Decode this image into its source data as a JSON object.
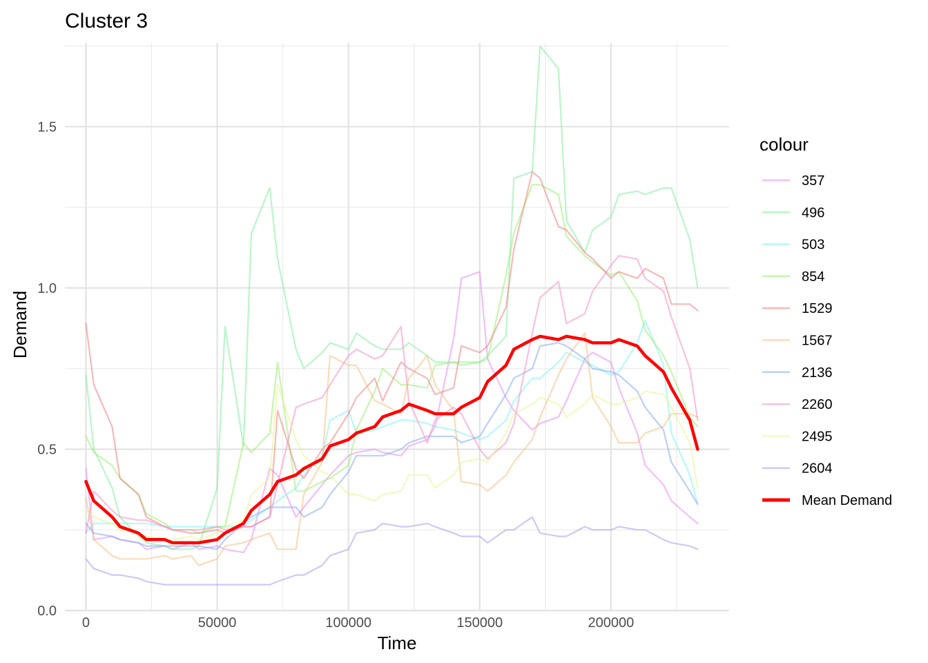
{
  "chart_data": {
    "type": "line",
    "title": "Cluster 3",
    "xlabel": "Time",
    "ylabel": "Demand",
    "xlim": [
      -8000,
      245000
    ],
    "ylim": [
      0,
      1.76
    ],
    "xticks": [
      0,
      50000,
      100000,
      150000,
      200000
    ],
    "xtick_labels": [
      "0",
      "50000",
      "100000",
      "150000",
      "200000"
    ],
    "yticks": [
      0.0,
      0.5,
      1.0,
      1.5
    ],
    "ytick_labels": [
      "0.0",
      "0.5",
      "1.0",
      "1.5"
    ],
    "grid": true,
    "legend": {
      "title": "colour",
      "position": "right"
    },
    "x": [
      0,
      3000,
      10000,
      13000,
      20000,
      23000,
      30000,
      33000,
      40000,
      43000,
      50000,
      53000,
      60000,
      63000,
      70000,
      73000,
      80000,
      83000,
      90000,
      93000,
      100000,
      103000,
      110000,
      113000,
      120000,
      123000,
      130000,
      133000,
      140000,
      143000,
      150000,
      153000,
      160000,
      163000,
      170000,
      173000,
      180000,
      183000,
      190000,
      193000,
      200000,
      203000,
      210000,
      213000,
      220000,
      223000,
      230000,
      233000
    ],
    "series": [
      {
        "name": "357",
        "color": "#E58AF5",
        "values": [
          0.44,
          0.22,
          0.23,
          0.22,
          0.21,
          0.19,
          0.2,
          0.19,
          0.21,
          0.19,
          0.2,
          0.19,
          0.18,
          0.22,
          0.44,
          0.42,
          0.29,
          0.32,
          0.39,
          0.42,
          0.48,
          0.49,
          0.5,
          0.49,
          0.48,
          0.51,
          0.53,
          0.57,
          0.84,
          1.03,
          1.05,
          0.78,
          0.66,
          0.62,
          0.56,
          0.58,
          0.6,
          0.65,
          0.78,
          0.8,
          0.77,
          0.69,
          0.55,
          0.45,
          0.39,
          0.34,
          0.29,
          0.27
        ]
      },
      {
        "name": "496",
        "color": "#7FEE9E",
        "values": [
          0.73,
          0.5,
          0.38,
          0.29,
          0.23,
          0.21,
          0.2,
          0.19,
          0.19,
          0.2,
          0.38,
          0.88,
          0.51,
          1.17,
          1.31,
          1.09,
          0.81,
          0.75,
          0.8,
          0.83,
          0.81,
          0.86,
          0.82,
          0.81,
          0.81,
          0.83,
          0.79,
          0.77,
          0.77,
          0.76,
          0.77,
          0.79,
          0.85,
          1.34,
          1.36,
          1.75,
          1.68,
          1.21,
          1.11,
          1.18,
          1.22,
          1.29,
          1.3,
          1.29,
          1.31,
          1.31,
          1.15,
          1.0
        ]
      },
      {
        "name": "503",
        "color": "#7EF2F2",
        "values": [
          0.24,
          0.27,
          0.27,
          0.27,
          0.27,
          0.27,
          0.26,
          0.26,
          0.26,
          0.26,
          0.26,
          0.26,
          0.26,
          0.28,
          0.32,
          0.34,
          0.38,
          0.42,
          0.48,
          0.59,
          0.62,
          0.55,
          0.56,
          0.57,
          0.59,
          0.59,
          0.58,
          0.57,
          0.56,
          0.55,
          0.53,
          0.54,
          0.59,
          0.65,
          0.72,
          0.72,
          0.77,
          0.8,
          0.77,
          0.76,
          0.73,
          0.74,
          0.83,
          0.9,
          0.76,
          0.55,
          0.42,
          0.33
        ]
      },
      {
        "name": "854",
        "color": "#99EE6E",
        "values": [
          0.54,
          0.49,
          0.45,
          0.41,
          0.36,
          0.3,
          0.27,
          0.25,
          0.25,
          0.24,
          0.26,
          0.26,
          0.52,
          0.49,
          0.55,
          0.77,
          0.37,
          0.37,
          0.4,
          0.41,
          0.45,
          0.56,
          0.68,
          0.75,
          0.7,
          0.7,
          0.69,
          0.76,
          0.77,
          0.77,
          0.77,
          0.78,
          1.04,
          1.17,
          1.32,
          1.32,
          1.29,
          1.16,
          1.1,
          1.08,
          1.04,
          1.05,
          0.96,
          0.87,
          0.79,
          0.74,
          0.6,
          0.57
        ]
      },
      {
        "name": "1529",
        "color": "#F08080",
        "values": [
          0.89,
          0.7,
          0.57,
          0.41,
          0.36,
          0.29,
          0.26,
          0.25,
          0.24,
          0.24,
          0.25,
          0.24,
          0.26,
          0.26,
          0.29,
          0.62,
          0.44,
          0.41,
          0.5,
          0.52,
          0.61,
          0.66,
          0.72,
          0.65,
          0.77,
          0.75,
          0.72,
          0.67,
          0.69,
          0.82,
          0.8,
          0.82,
          0.94,
          1.12,
          1.36,
          1.34,
          1.19,
          1.18,
          1.11,
          1.09,
          1.03,
          1.05,
          1.03,
          1.06,
          1.03,
          0.95,
          0.95,
          0.93
        ]
      },
      {
        "name": "1567",
        "color": "#F7BE7E",
        "values": [
          0.35,
          0.22,
          0.17,
          0.16,
          0.16,
          0.16,
          0.17,
          0.16,
          0.17,
          0.14,
          0.16,
          0.2,
          0.21,
          0.22,
          0.24,
          0.19,
          0.19,
          0.36,
          0.46,
          0.79,
          0.76,
          0.76,
          0.65,
          0.64,
          0.61,
          0.72,
          0.79,
          0.7,
          0.62,
          0.4,
          0.39,
          0.37,
          0.42,
          0.46,
          0.53,
          0.6,
          0.73,
          0.78,
          0.86,
          0.66,
          0.57,
          0.52,
          0.52,
          0.55,
          0.57,
          0.61,
          0.61,
          0.6
        ]
      },
      {
        "name": "2136",
        "color": "#85A8F0",
        "values": [
          0.27,
          0.24,
          0.23,
          0.22,
          0.21,
          0.2,
          0.2,
          0.2,
          0.2,
          0.2,
          0.19,
          0.22,
          0.27,
          0.29,
          0.32,
          0.32,
          0.32,
          0.29,
          0.32,
          0.36,
          0.43,
          0.48,
          0.48,
          0.48,
          0.5,
          0.52,
          0.54,
          0.54,
          0.54,
          0.52,
          0.54,
          0.58,
          0.67,
          0.72,
          0.75,
          0.82,
          0.83,
          0.82,
          0.78,
          0.75,
          0.74,
          0.73,
          0.68,
          0.63,
          0.56,
          0.46,
          0.37,
          0.33
        ]
      },
      {
        "name": "2260",
        "color": "#F58CC6",
        "values": [
          0.24,
          0.37,
          0.31,
          0.29,
          0.28,
          0.28,
          0.26,
          0.25,
          0.25,
          0.25,
          0.26,
          0.25,
          0.26,
          0.26,
          0.29,
          0.39,
          0.63,
          0.64,
          0.66,
          0.7,
          0.79,
          0.81,
          0.78,
          0.79,
          0.88,
          0.65,
          0.52,
          0.59,
          0.63,
          0.61,
          0.5,
          0.47,
          0.52,
          0.58,
          0.86,
          0.97,
          1.02,
          0.89,
          0.92,
          0.99,
          1.07,
          1.1,
          1.09,
          1.03,
          0.99,
          0.91,
          0.75,
          0.59
        ]
      },
      {
        "name": "2495",
        "color": "#E4F78C",
        "values": [
          0.31,
          0.29,
          0.27,
          0.25,
          0.24,
          0.23,
          0.22,
          0.22,
          0.23,
          0.22,
          0.24,
          0.26,
          0.28,
          0.36,
          0.41,
          0.7,
          0.53,
          0.48,
          0.43,
          0.42,
          0.36,
          0.36,
          0.34,
          0.36,
          0.37,
          0.42,
          0.42,
          0.38,
          0.42,
          0.46,
          0.47,
          0.46,
          0.55,
          0.61,
          0.64,
          0.66,
          0.64,
          0.6,
          0.64,
          0.67,
          0.64,
          0.64,
          0.66,
          0.68,
          0.67,
          0.63,
          0.52,
          0.38
        ]
      },
      {
        "name": "2604",
        "color": "#A89AF0",
        "values": [
          0.16,
          0.13,
          0.11,
          0.11,
          0.1,
          0.09,
          0.08,
          0.08,
          0.08,
          0.08,
          0.08,
          0.08,
          0.08,
          0.08,
          0.08,
          0.09,
          0.11,
          0.11,
          0.14,
          0.17,
          0.19,
          0.24,
          0.25,
          0.27,
          0.26,
          0.26,
          0.27,
          0.26,
          0.24,
          0.23,
          0.23,
          0.21,
          0.25,
          0.25,
          0.29,
          0.24,
          0.23,
          0.23,
          0.26,
          0.25,
          0.25,
          0.26,
          0.25,
          0.25,
          0.22,
          0.21,
          0.2,
          0.19
        ]
      },
      {
        "name": "Mean Demand",
        "color": "#FF0000",
        "values": [
          0.4,
          0.34,
          0.29,
          0.26,
          0.24,
          0.22,
          0.22,
          0.21,
          0.21,
          0.21,
          0.22,
          0.24,
          0.27,
          0.31,
          0.36,
          0.4,
          0.42,
          0.44,
          0.47,
          0.51,
          0.53,
          0.55,
          0.57,
          0.6,
          0.62,
          0.64,
          0.62,
          0.61,
          0.61,
          0.63,
          0.66,
          0.71,
          0.76,
          0.81,
          0.84,
          0.85,
          0.84,
          0.85,
          0.84,
          0.83,
          0.83,
          0.84,
          0.82,
          0.79,
          0.74,
          0.69,
          0.59,
          0.5
        ]
      }
    ]
  }
}
